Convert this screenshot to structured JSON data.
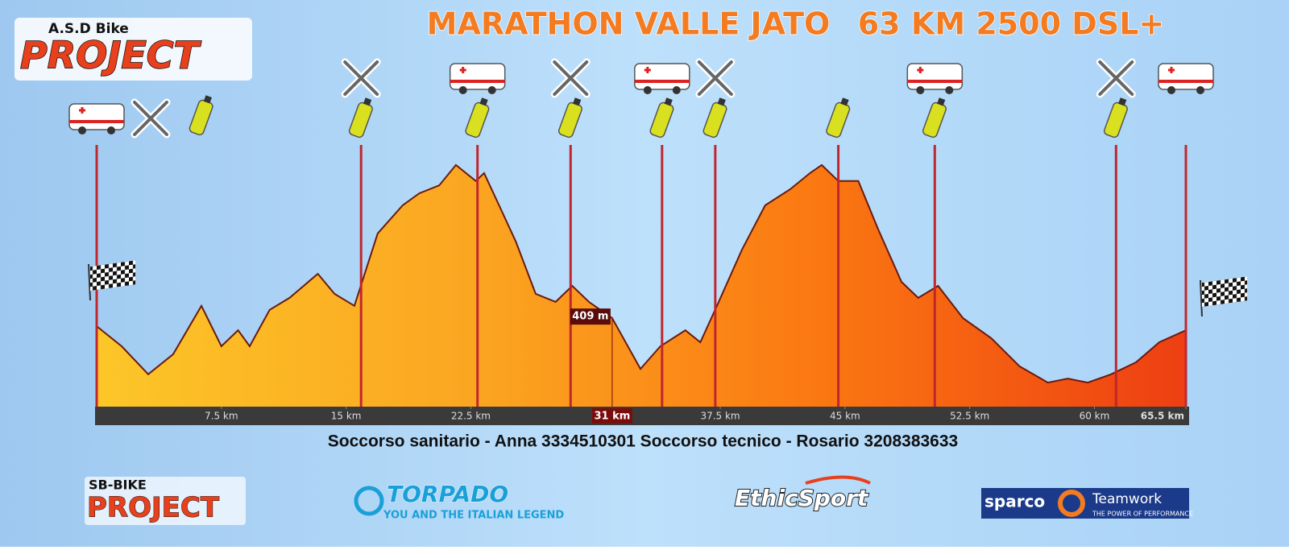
{
  "chart_data": {
    "type": "area",
    "title": "MARATHON VALLE JATO",
    "subtitle": "63 KM 2500 DSL+",
    "x": [
      0,
      1.5,
      3.1,
      4.6,
      6.3,
      7.5,
      8.5,
      9.2,
      10.4,
      11.6,
      13.3,
      14.3,
      15.5,
      16.9,
      18.4,
      19.4,
      20.6,
      21.6,
      22.8,
      23.3,
      24.2,
      25.2,
      26.4,
      27.6,
      28.6,
      29.6,
      31,
      32.7,
      33.9,
      35.4,
      36.3,
      37.3,
      38.8,
      40.2,
      41.7,
      42.9,
      43.6,
      44.6,
      45.8,
      47,
      48.4,
      49.4,
      50.6,
      52.1,
      53.8,
      55.5,
      57.2,
      58.4,
      59.6,
      61,
      62.5,
      63.9,
      65.5
    ],
    "values": [
      381,
      311,
      213,
      283,
      452,
      311,
      367,
      311,
      438,
      480,
      564,
      494,
      452,
      705,
      803,
      845,
      873,
      944,
      888,
      916,
      803,
      677,
      494,
      466,
      522,
      466,
      409,
      232,
      311,
      367,
      325,
      452,
      648,
      803,
      859,
      916,
      944,
      888,
      888,
      719,
      536,
      480,
      522,
      409,
      339,
      241,
      184,
      198,
      184,
      213,
      255,
      325,
      367
    ],
    "xlim": [
      0,
      65.5
    ],
    "ylim": [
      100,
      1000
    ],
    "xticks": [
      {
        "value": 7.5,
        "label": "7.5 km"
      },
      {
        "value": 15,
        "label": "15 km"
      },
      {
        "value": 22.5,
        "label": "22.5 km"
      },
      {
        "value": 37.5,
        "label": "37.5 km"
      },
      {
        "value": 45,
        "label": "45 km"
      },
      {
        "value": 52.5,
        "label": "52.5 km"
      },
      {
        "value": 60,
        "label": "60 km"
      },
      {
        "value": 65.5,
        "label": "65.5 km"
      }
    ],
    "highlight": {
      "x": 31,
      "x_label": "31 km",
      "value": 409,
      "value_label": "409 m"
    },
    "stations": [
      0,
      15.9,
      22.9,
      28.5,
      34,
      37.2,
      44.6,
      50.4,
      61.3,
      65.5
    ],
    "color": "#c0272d",
    "footer": "Soccorso sanitario - Anna 3334510301 Soccorso tecnico - Rosario 3208383633"
  },
  "logos": {
    "asd_top": "A.S.D Bike",
    "asd_main": "PROJECT",
    "sb_top": "SB-BIKE",
    "sb_main": "PROJECT",
    "torpado": "TORPADO",
    "torpado_tag": "YOU AND THE ITALIAN LEGEND",
    "ethic": "EthicSport",
    "sparco": "sparco",
    "teamwork": "Teamwork",
    "teamwork_tag": "THE POWER OF PERFORMANCE"
  }
}
